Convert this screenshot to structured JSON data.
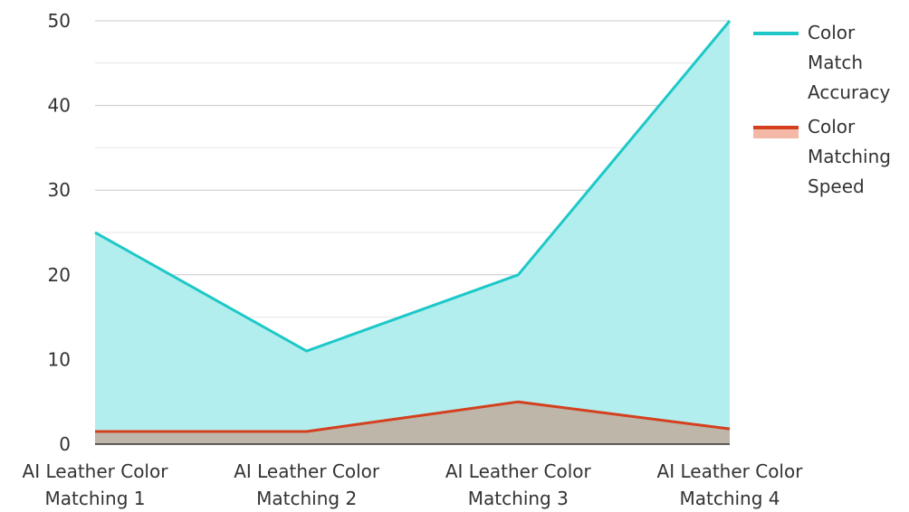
{
  "chart_data": {
    "type": "area",
    "categories": [
      [
        "AI Leather Color",
        "Matching 1"
      ],
      [
        "AI Leather Color",
        "Matching 2"
      ],
      [
        "AI Leather Color",
        "Matching 3"
      ],
      [
        "AI Leather Color",
        "Matching 4"
      ]
    ],
    "series": [
      {
        "name": "Color Match Accuracy",
        "name_lines": [
          "Color",
          "Match",
          "Accuracy"
        ],
        "values": [
          25,
          11,
          20,
          50
        ],
        "line_color": "#1ec8c8",
        "fill_color": "#b2eeee"
      },
      {
        "name": "Color Matching Speed",
        "name_lines": [
          "Color",
          "Matching",
          "Speed"
        ],
        "values": [
          1.5,
          1.5,
          5,
          1.8
        ],
        "line_color": "#d4401e",
        "fill_color": "#f4b8a6"
      }
    ],
    "overlap_fill_color": "#bdb6a9",
    "ylim": [
      0,
      50
    ],
    "yticks": [
      0,
      10,
      20,
      30,
      40,
      50
    ],
    "minor_grid": true,
    "legend_position": "right"
  }
}
